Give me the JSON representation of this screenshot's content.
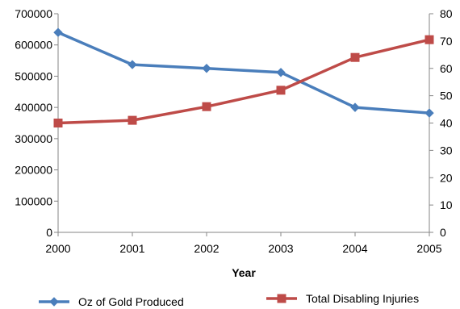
{
  "chart_data": {
    "type": "line",
    "title": "",
    "xlabel": "Year",
    "ylabel": "",
    "y2label": "",
    "x": [
      "2000",
      "2001",
      "2002",
      "2003",
      "2004",
      "2005"
    ],
    "ylim": [
      0,
      700000
    ],
    "y2lim": [
      0,
      80
    ],
    "yticks": [
      "0",
      "100000",
      "200000",
      "300000",
      "400000",
      "500000",
      "600000",
      "700000"
    ],
    "y2ticks": [
      "0",
      "10",
      "20",
      "30",
      "40",
      "50",
      "60",
      "70",
      "80"
    ],
    "grid": false,
    "legend_position": "bottom",
    "series": [
      {
        "name": "Oz of Gold Produced",
        "axis": "left",
        "marker": "diamond",
        "color": "#4a7ebb",
        "values": [
          640000,
          537000,
          525000,
          512000,
          400000,
          382000
        ]
      },
      {
        "name": "Total Disabling Injuries",
        "axis": "right",
        "marker": "square",
        "color": "#be4b48",
        "values": [
          40,
          41,
          46,
          52,
          64,
          70.5
        ]
      }
    ]
  }
}
